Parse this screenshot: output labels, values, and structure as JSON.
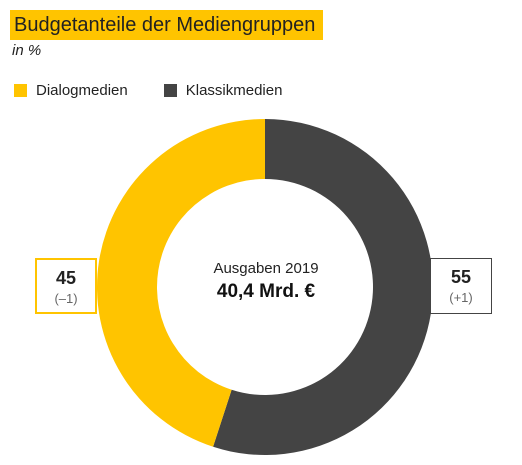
{
  "chart_data": {
    "type": "pie",
    "title": "Budgetanteile der Mediengruppen",
    "subtitle": "in %",
    "legend": [
      {
        "name": "Dialogmedien",
        "color": "#ffc400"
      },
      {
        "name": "Klassikmedien",
        "color": "#444444"
      }
    ],
    "slices": [
      {
        "name": "Dialogmedien",
        "value": 45,
        "change": "(–1)",
        "color": "#ffc400"
      },
      {
        "name": "Klassikmedien",
        "value": 55,
        "change": "(+1)",
        "color": "#444444"
      }
    ],
    "center": {
      "label": "Ausgaben 2019",
      "value": "40,4 Mrd. €"
    },
    "legend_position": "top-left"
  }
}
